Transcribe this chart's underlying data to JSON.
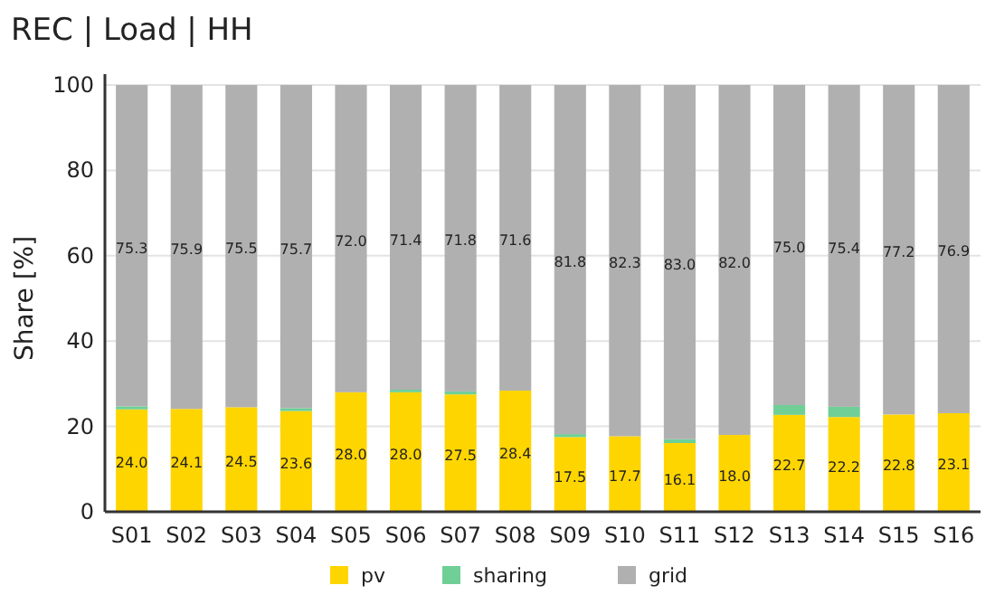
{
  "chart_data": {
    "type": "bar",
    "title": "REC | Load | HH",
    "ylabel": "Share [%]",
    "stacked": true,
    "categories": [
      "S01",
      "S02",
      "S03",
      "S04",
      "S05",
      "S06",
      "S07",
      "S08",
      "S09",
      "S10",
      "S11",
      "S12",
      "S13",
      "S14",
      "S15",
      "S16"
    ],
    "series": [
      {
        "name": "pv",
        "color": "#ffd500",
        "values": [
          24.0,
          24.1,
          24.5,
          23.6,
          28.0,
          28.0,
          27.5,
          28.4,
          17.5,
          17.7,
          16.1,
          18.0,
          22.7,
          22.2,
          22.8,
          23.1
        ],
        "value_labels": [
          "24.0",
          "24.1",
          "24.5",
          "23.6",
          "28.0",
          "28.0",
          "27.5",
          "28.4",
          "17.5",
          "17.7",
          "16.1",
          "18.0",
          "22.7",
          "22.2",
          "22.8",
          "23.1"
        ]
      },
      {
        "name": "sharing",
        "color": "#6fcf97",
        "values": [
          0.7,
          0,
          0,
          0.7,
          0,
          0.6,
          0.7,
          0,
          0.7,
          0,
          0.9,
          0,
          2.3,
          2.4,
          0,
          0
        ]
      },
      {
        "name": "grid",
        "color": "#b0b0b0",
        "values": [
          75.3,
          75.9,
          75.5,
          75.7,
          72.0,
          71.4,
          71.8,
          71.6,
          81.8,
          82.3,
          83.0,
          82.0,
          75.0,
          75.4,
          77.2,
          76.9
        ],
        "value_labels": [
          "75.3",
          "75.9",
          "75.5",
          "75.7",
          "72.0",
          "71.4",
          "71.8",
          "71.6",
          "81.8",
          "82.3",
          "83.0",
          "82.0",
          "75.0",
          "75.4",
          "77.2",
          "76.9"
        ]
      }
    ],
    "ylim": [
      0,
      100
    ],
    "yticks": [
      0,
      20,
      40,
      60,
      80,
      100
    ],
    "grid": "y",
    "legend": "bottom"
  }
}
